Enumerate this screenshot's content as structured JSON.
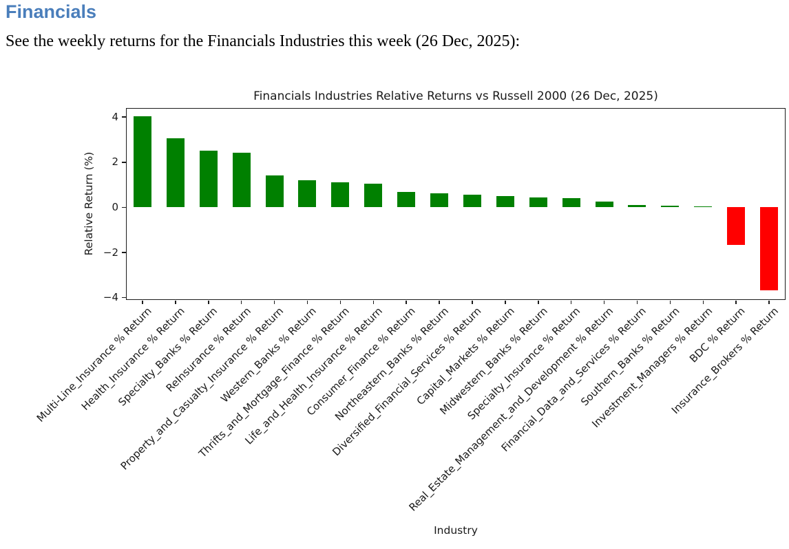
{
  "page": {
    "heading": "Financials",
    "subtitle": "See the weekly returns for the Financials Industries this week (26 Dec, 2025):"
  },
  "chart_data": {
    "type": "bar",
    "title": "Financials Industries Relative Returns vs Russell 2000 (26 Dec, 2025)",
    "xlabel": "Industry",
    "ylabel": "Relative Return (%)",
    "ylim": [
      -4.1,
      4.4
    ],
    "yticks": [
      4,
      2,
      0,
      -2,
      -4
    ],
    "grid": false,
    "legend": false,
    "positive_color": "#008000",
    "negative_color": "#ff0000",
    "categories": [
      "Multi-Line_Insurance % Return",
      "Health_Insurance % Return",
      "Specialty_Banks % Return",
      "ReInsurance % Return",
      "Property_and_Casualty_Insurance % Return",
      "Western_Banks % Return",
      "Thrifts_and_Mortgage_Finance % Return",
      "Life_and_Health_Insurance % Return",
      "Consumer_Finance % Return",
      "Northeastern_Banks % Return",
      "Diversified_Financial_Services % Return",
      "Capital_Markets % Return",
      "Midwestern_Banks % Return",
      "Specialty_Insurance % Return",
      "Real_Estate_Management_and_Development % Return",
      "Financial_Data_and_Services % Return",
      "Southern_Banks % Return",
      "Investment_Managers % Return",
      "BDC % Return",
      "Insurance_Brokers % Return"
    ],
    "values": [
      4.02,
      3.06,
      2.52,
      2.42,
      1.4,
      1.21,
      1.1,
      1.05,
      0.68,
      0.62,
      0.56,
      0.5,
      0.43,
      0.4,
      0.25,
      0.1,
      0.06,
      0.03,
      -1.65,
      -3.67
    ]
  }
}
